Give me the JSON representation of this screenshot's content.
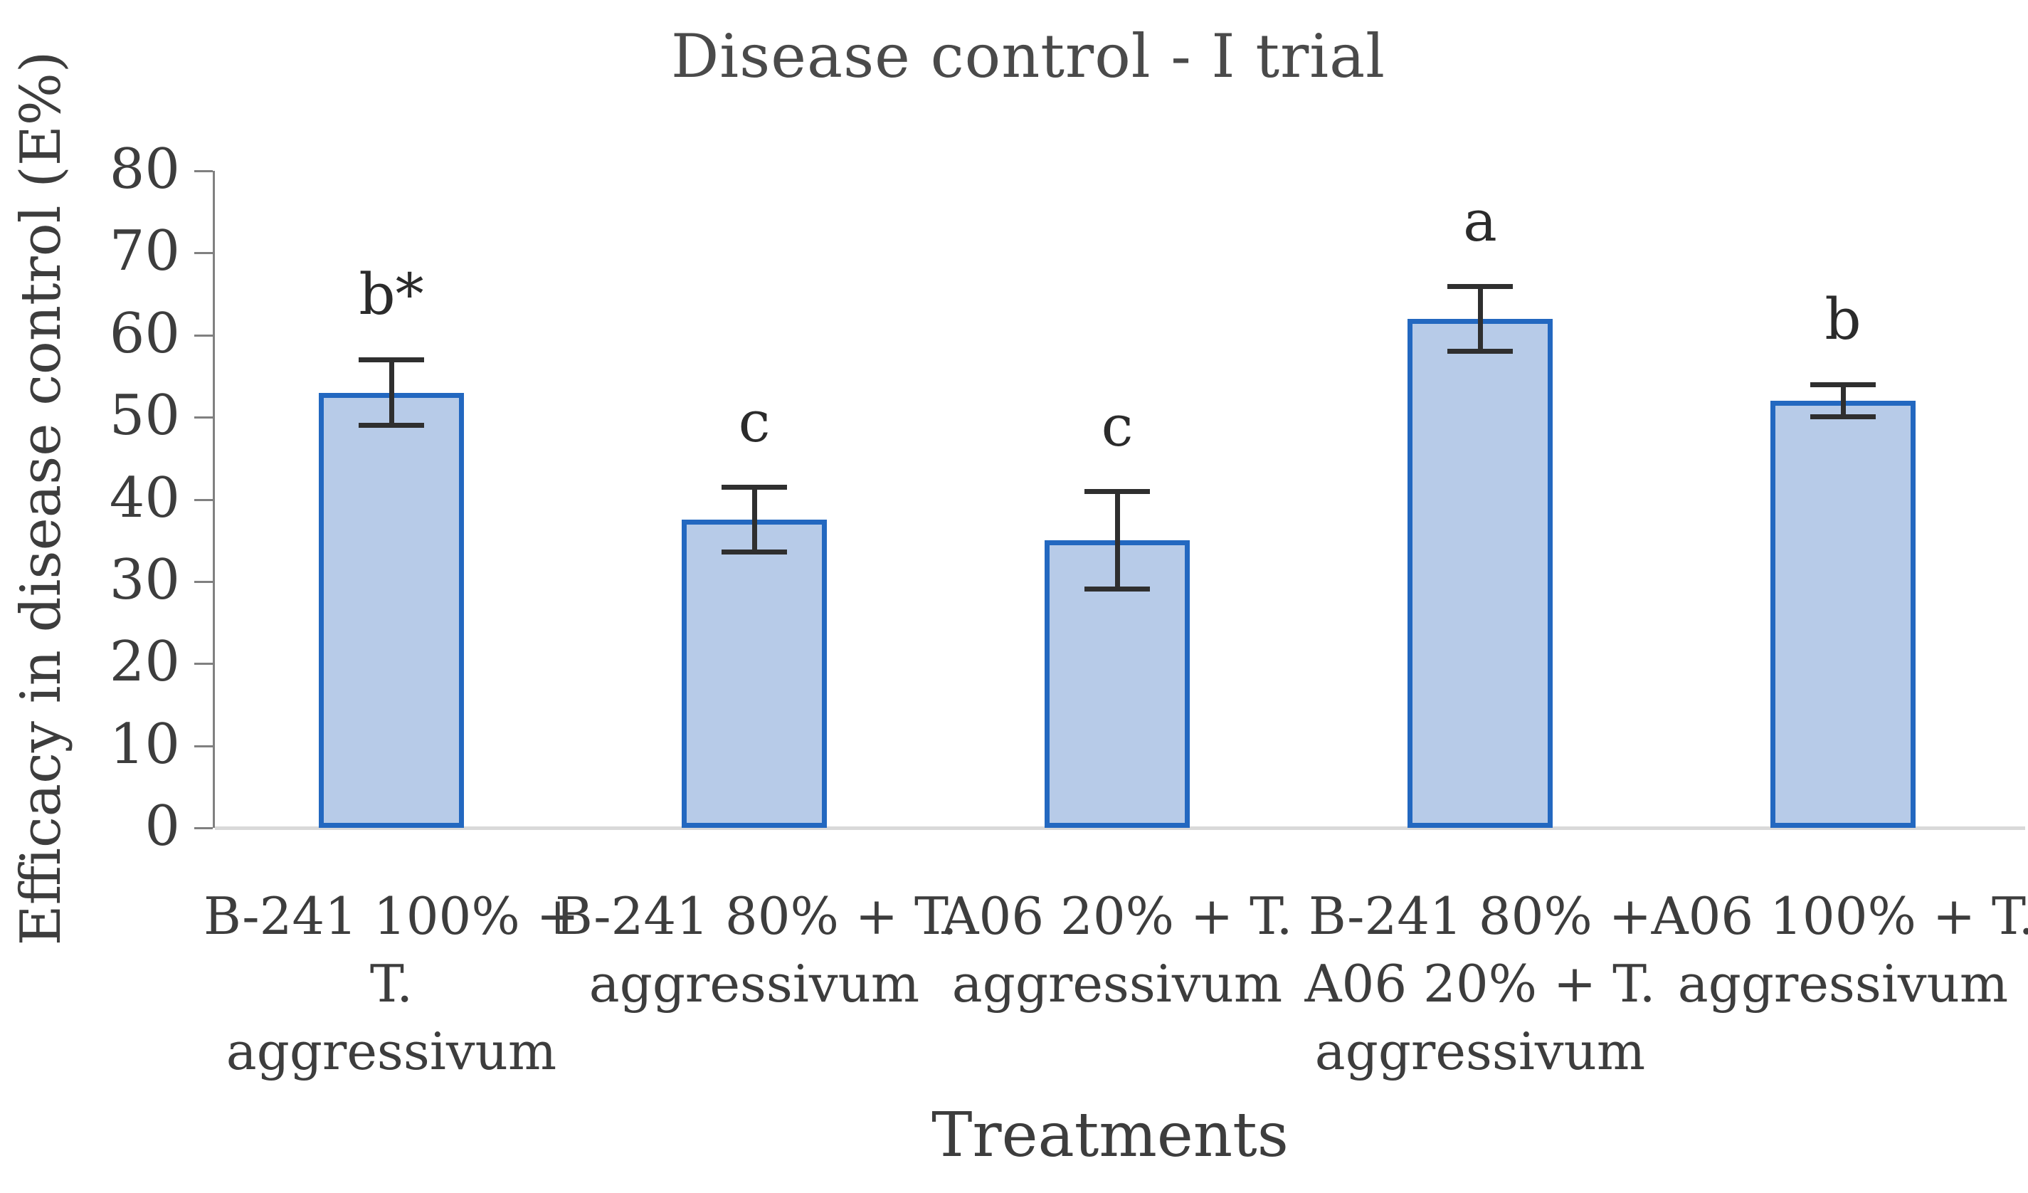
{
  "chart_data": {
    "type": "bar",
    "title": "Disease control - I trial",
    "xlabel": "Treatments",
    "ylabel": "Efficacy in disease control (E%)",
    "ylim": [
      0,
      80
    ],
    "yticks": [
      0,
      10,
      20,
      30,
      40,
      50,
      60,
      70,
      80
    ],
    "grid": "off",
    "legend_position": "none",
    "categories": [
      "B-241 100% + T. aggressivum",
      "B-241 80% + T. aggressivum",
      "A06 20% + T. aggressivum",
      "B-241 80% + A06 20% + T. aggressivum",
      "A06 100% + T. aggressivum"
    ],
    "category_lines": [
      [
        "B-241 100% +",
        "T.",
        "aggressivum"
      ],
      [
        "B-241 80% + T.",
        "aggressivum"
      ],
      [
        "A06 20% + T.",
        "aggressivum"
      ],
      [
        "B-241 80% +",
        "A06 20% + T.",
        "aggressivum"
      ],
      [
        "A06 100% + T.",
        "aggressivum"
      ]
    ],
    "series": [
      {
        "name": "Efficacy in disease control (E%)",
        "values": [
          53,
          37.5,
          35,
          62,
          52
        ],
        "errors": [
          4,
          4,
          6,
          4,
          2
        ],
        "significance_labels": [
          "b*",
          "c",
          "c",
          "a",
          "b"
        ]
      }
    ],
    "colors": {
      "bar_fill": "#b7cbe8",
      "bar_border": "#2368c0",
      "error_bar": "#2f2f2f",
      "y_axis_line": "#808080",
      "x_axis_line": "#d9d9d9",
      "text": "#3d3d3d"
    }
  }
}
